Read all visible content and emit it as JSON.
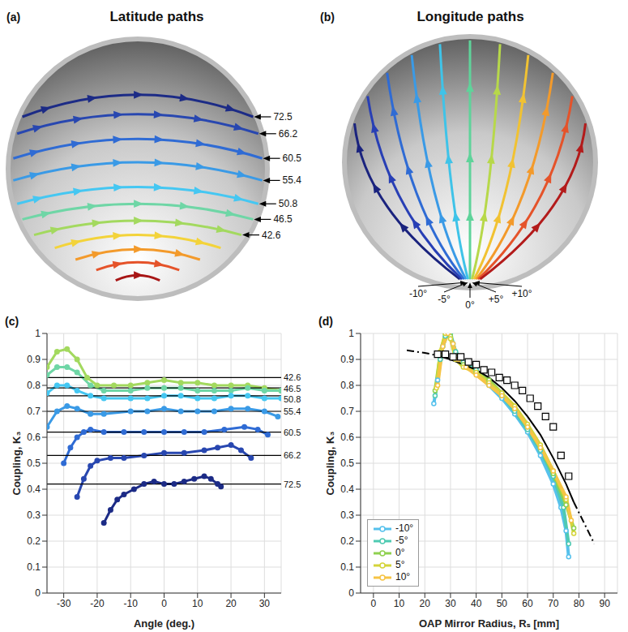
{
  "diagrams": {
    "a": {
      "title": "Latitude paths",
      "panel": "(a)",
      "paths": [
        {
          "label": "72.5",
          "color": "#1c2b86"
        },
        {
          "label": "66.2",
          "color": "#2847b0"
        },
        {
          "label": "60.5",
          "color": "#2f6bd4"
        },
        {
          "label": "55.4",
          "color": "#3a9ae6"
        },
        {
          "label": "50.8",
          "color": "#45c7f2"
        },
        {
          "label": "46.5",
          "color": "#6fd6a6"
        },
        {
          "label": "42.6",
          "color": "#a3d95f"
        },
        {
          "label": null,
          "color": "#f3d33a"
        },
        {
          "label": null,
          "color": "#f39a2b"
        },
        {
          "label": null,
          "color": "#e5532a"
        },
        {
          "label": null,
          "color": "#a81616"
        }
      ]
    },
    "b": {
      "title": "Longitude paths",
      "panel": "(b)",
      "paths": [
        {
          "label": null,
          "color": "#1a237e"
        },
        {
          "label": null,
          "color": "#283fb5"
        },
        {
          "label": null,
          "color": "#2f6bd4"
        },
        {
          "label": "-10°",
          "color": "#3a9ae6"
        },
        {
          "label": "-5°",
          "color": "#3fc3e8"
        },
        {
          "label": "0°",
          "color": "#5fd39a"
        },
        {
          "label": "+5°",
          "color": "#b7d84a"
        },
        {
          "label": "+10°",
          "color": "#f1c232"
        },
        {
          "label": null,
          "color": "#f39a2b"
        },
        {
          "label": null,
          "color": "#e5532a"
        },
        {
          "label": null,
          "color": "#b31b1b"
        }
      ]
    }
  },
  "chart_data": [
    {
      "type": "line",
      "panel": "(c)",
      "xlabel": "Angle (deg.)",
      "ylabel": "Coupling, K₃",
      "xlim": [
        -35,
        35
      ],
      "xticks": [
        -30,
        -20,
        -10,
        0,
        10,
        20,
        30
      ],
      "ylim": [
        0,
        1
      ],
      "yticks": [
        0,
        0.1,
        0.2,
        0.3,
        0.4,
        0.5,
        0.6,
        0.7,
        0.8,
        0.9,
        1
      ],
      "grid": true,
      "marker": "circle",
      "series": [
        {
          "label": "42.6",
          "color": "#a3d95f",
          "average": 0.83,
          "x": [
            -35,
            -32,
            -29,
            -26,
            -23,
            -20,
            -15,
            -10,
            -5,
            0,
            5,
            10,
            15,
            20,
            25,
            30,
            35
          ],
          "values": [
            0.87,
            0.93,
            0.94,
            0.9,
            0.83,
            0.8,
            0.8,
            0.8,
            0.81,
            0.82,
            0.81,
            0.81,
            0.8,
            0.8,
            0.8,
            0.79,
            0.78
          ]
        },
        {
          "label": "46.5",
          "color": "#6fd6a6",
          "average": 0.79,
          "x": [
            -35,
            -32,
            -29,
            -26,
            -22,
            -18,
            -10,
            -5,
            0,
            5,
            10,
            15,
            20,
            25,
            30,
            35
          ],
          "values": [
            0.84,
            0.87,
            0.87,
            0.85,
            0.8,
            0.78,
            0.78,
            0.79,
            0.79,
            0.79,
            0.78,
            0.78,
            0.78,
            0.79,
            0.78,
            0.78
          ]
        },
        {
          "label": "50.8",
          "color": "#45c7f2",
          "average": 0.76,
          "x": [
            -35,
            -32,
            -29,
            -26,
            -22,
            -18,
            -10,
            -5,
            0,
            5,
            10,
            15,
            20,
            25,
            30,
            35
          ],
          "values": [
            0.77,
            0.8,
            0.8,
            0.78,
            0.76,
            0.75,
            0.75,
            0.75,
            0.76,
            0.76,
            0.75,
            0.75,
            0.76,
            0.76,
            0.75,
            0.75
          ]
        },
        {
          "label": "55.4",
          "color": "#3a9ae6",
          "average": 0.7,
          "x": [
            -35,
            -32,
            -29,
            -26,
            -22,
            -18,
            -10,
            -5,
            0,
            5,
            10,
            15,
            20,
            25,
            30,
            34
          ],
          "values": [
            0.64,
            0.7,
            0.72,
            0.71,
            0.69,
            0.69,
            0.7,
            0.7,
            0.71,
            0.7,
            0.7,
            0.7,
            0.71,
            0.71,
            0.7,
            0.68
          ]
        },
        {
          "label": "60.5",
          "color": "#2f6bd4",
          "average": 0.62,
          "x": [
            -30,
            -28,
            -26,
            -24,
            -22,
            -18,
            -12,
            -6,
            0,
            6,
            12,
            18,
            24,
            28,
            31
          ],
          "values": [
            0.5,
            0.56,
            0.6,
            0.62,
            0.63,
            0.62,
            0.62,
            0.62,
            0.62,
            0.62,
            0.62,
            0.63,
            0.64,
            0.63,
            0.61
          ]
        },
        {
          "label": "66.2",
          "color": "#2847b0",
          "average": 0.53,
          "x": [
            -26,
            -24,
            -22,
            -20,
            -16,
            -12,
            -6,
            0,
            6,
            12,
            16,
            20,
            23,
            26
          ],
          "values": [
            0.37,
            0.44,
            0.49,
            0.51,
            0.52,
            0.52,
            0.53,
            0.54,
            0.54,
            0.55,
            0.56,
            0.57,
            0.55,
            0.52
          ]
        },
        {
          "label": "72.5",
          "color": "#1c2b86",
          "average": 0.42,
          "x": [
            -18,
            -16,
            -14,
            -12,
            -9,
            -6,
            -3,
            0,
            3,
            6,
            9,
            12,
            14,
            16,
            17
          ],
          "values": [
            0.27,
            0.32,
            0.36,
            0.38,
            0.4,
            0.42,
            0.43,
            0.42,
            0.42,
            0.43,
            0.44,
            0.45,
            0.44,
            0.42,
            0.41
          ]
        }
      ]
    },
    {
      "type": "line",
      "panel": "(d)",
      "xlabel": "OAP Mirror Radius, Rₛ [mm]",
      "ylabel": "Coupling, K₃",
      "xlim": [
        -5,
        95
      ],
      "xticks": [
        0,
        10,
        20,
        30,
        40,
        50,
        60,
        70,
        80,
        90
      ],
      "ylim": [
        0,
        1
      ],
      "yticks": [
        0,
        0.1,
        0.2,
        0.3,
        0.4,
        0.5,
        0.6,
        0.7,
        0.8,
        0.9,
        1
      ],
      "grid": true,
      "legend": "lower left",
      "series": [
        {
          "name": "-10°",
          "color": "#56c1ec",
          "marker": "circle",
          "x": [
            23.5,
            25,
            27,
            29,
            31,
            33,
            36,
            40,
            45,
            50,
            55,
            60,
            65,
            70,
            73,
            75,
            76
          ],
          "values": [
            0.73,
            0.82,
            0.95,
            1.0,
            0.96,
            0.9,
            0.88,
            0.85,
            0.8,
            0.75,
            0.69,
            0.62,
            0.53,
            0.42,
            0.33,
            0.24,
            0.14
          ]
        },
        {
          "name": "-5°",
          "color": "#4fcab2",
          "marker": "circle",
          "x": [
            24,
            26,
            28,
            30,
            32,
            35,
            40,
            45,
            50,
            55,
            60,
            65,
            70,
            74,
            76
          ],
          "values": [
            0.76,
            0.9,
            0.99,
            1.0,
            0.93,
            0.89,
            0.86,
            0.81,
            0.76,
            0.7,
            0.63,
            0.55,
            0.45,
            0.33,
            0.19
          ]
        },
        {
          "name": "0°",
          "color": "#8fd14f",
          "marker": "circle",
          "x": [
            24,
            26,
            28,
            30,
            32,
            35,
            40,
            45,
            50,
            55,
            60,
            65,
            70,
            75,
            78
          ],
          "values": [
            0.78,
            0.92,
            1.0,
            0.99,
            0.91,
            0.88,
            0.85,
            0.82,
            0.77,
            0.71,
            0.64,
            0.56,
            0.46,
            0.34,
            0.25
          ]
        },
        {
          "name": "5°",
          "color": "#d4d43a",
          "marker": "circle",
          "x": [
            24.5,
            26,
            28,
            30,
            32,
            35,
            40,
            45,
            50,
            55,
            60,
            65,
            70,
            75,
            78
          ],
          "values": [
            0.79,
            0.93,
            1.0,
            0.98,
            0.9,
            0.87,
            0.85,
            0.81,
            0.77,
            0.72,
            0.65,
            0.57,
            0.47,
            0.36,
            0.23
          ]
        },
        {
          "name": "10°",
          "color": "#f6c445",
          "marker": "circle",
          "x": [
            25,
            27,
            29,
            31,
            33,
            36,
            40,
            45,
            50,
            55,
            60,
            65,
            70,
            75,
            77
          ],
          "values": [
            0.8,
            0.95,
            1.0,
            0.96,
            0.9,
            0.87,
            0.84,
            0.8,
            0.76,
            0.71,
            0.64,
            0.56,
            0.47,
            0.37,
            0.28
          ]
        },
        {
          "color": "#000000",
          "line_style": "solid",
          "x": [
            25,
            30,
            35,
            40,
            45,
            50,
            55,
            60,
            65,
            70,
            75,
            78
          ],
          "values": [
            0.915,
            0.9,
            0.88,
            0.86,
            0.83,
            0.79,
            0.74,
            0.68,
            0.61,
            0.52,
            0.42,
            0.35
          ]
        },
        {
          "color": "#000000",
          "line_style": "dashdot",
          "x": [
            13,
            20,
            25,
            50,
            78,
            82,
            86
          ],
          "values": [
            0.935,
            0.925,
            0.915,
            null,
            0.35,
            0.27,
            0.19
          ]
        },
        {
          "color": "#000000",
          "type": "scatter",
          "marker": "square",
          "x": [
            25,
            28,
            31,
            34,
            37,
            40,
            43,
            46,
            49,
            52,
            55,
            58,
            61,
            64,
            67,
            70,
            73,
            76
          ],
          "values": [
            0.92,
            0.92,
            0.91,
            0.91,
            0.89,
            0.88,
            0.86,
            0.85,
            0.83,
            0.82,
            0.8,
            0.78,
            0.75,
            0.72,
            0.68,
            0.64,
            0.53,
            0.45
          ]
        }
      ]
    }
  ]
}
